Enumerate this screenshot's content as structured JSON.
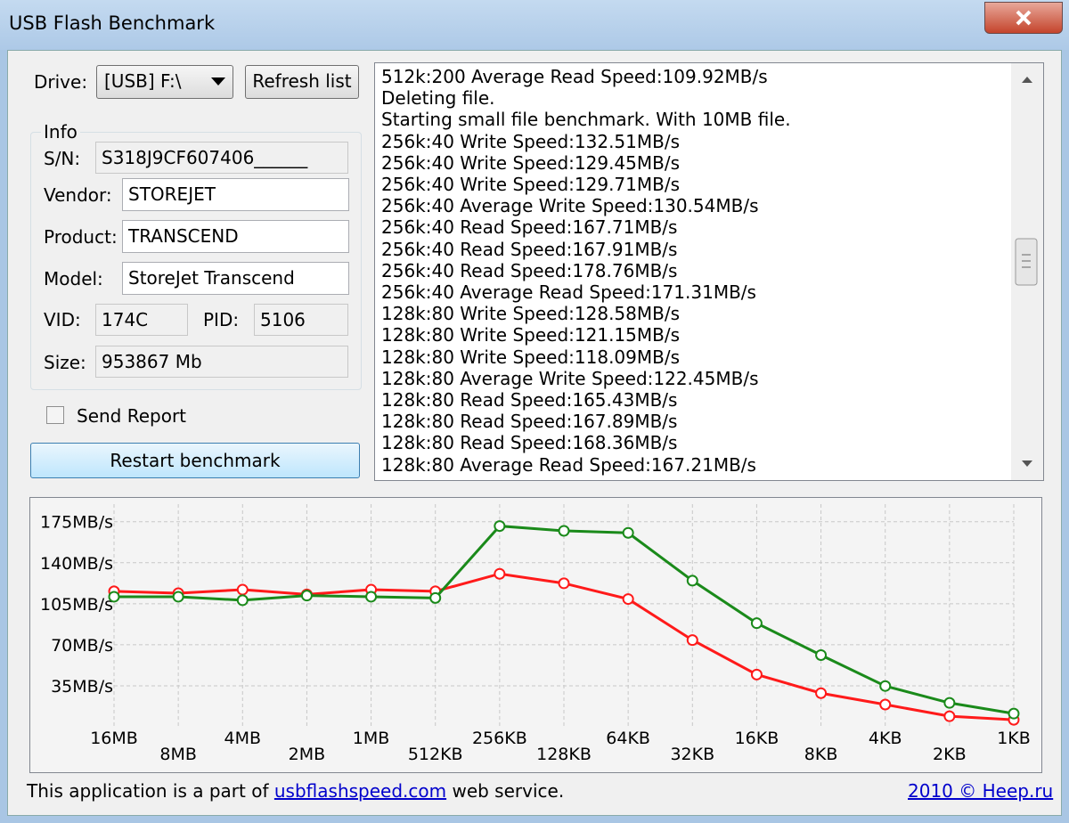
{
  "window": {
    "title": "USB Flash Benchmark"
  },
  "drive": {
    "label": "Drive:",
    "value": "[USB] F:\\",
    "refresh": "Refresh list"
  },
  "info": {
    "title": "Info",
    "sn_label": "S/N:",
    "sn": "S318J9CF607406______",
    "vendor_label": "Vendor:",
    "vendor": "STOREJET",
    "product_label": "Product:",
    "product": "TRANSCEND",
    "model_label": "Model:",
    "model": "StoreJet Transcend",
    "vid_label": "VID:",
    "vid": "174C",
    "pid_label": "PID:",
    "pid": "5106",
    "size_label": "Size:",
    "size": "953867 Mb"
  },
  "send_report": "Send Report",
  "restart": "Restart benchmark",
  "log": [
    "512k:200 Average Read Speed:109.92MB/s",
    "Deleting file.",
    "Starting small file benchmark. With 10MB file.",
    "256k:40 Write Speed:132.51MB/s",
    "256k:40 Write Speed:129.45MB/s",
    "256k:40 Write Speed:129.71MB/s",
    "256k:40 Average Write Speed:130.54MB/s",
    "256k:40 Read Speed:167.71MB/s",
    "256k:40 Read Speed:167.91MB/s",
    "256k:40 Read Speed:178.76MB/s",
    "256k:40 Average Read Speed:171.31MB/s",
    "128k:80 Write Speed:128.58MB/s",
    "128k:80 Write Speed:121.15MB/s",
    "128k:80 Write Speed:118.09MB/s",
    "128k:80 Average Write Speed:122.45MB/s",
    "128k:80 Read Speed:165.43MB/s",
    "128k:80 Read Speed:167.89MB/s",
    "128k:80 Read Speed:168.36MB/s",
    "128k:80 Average Read Speed:167.21MB/s"
  ],
  "chart_data": {
    "type": "line",
    "categories": [
      "16MB",
      "8MB",
      "4MB",
      "2MB",
      "1MB",
      "512KB",
      "256KB",
      "128KB",
      "64KB",
      "32KB",
      "16KB",
      "8KB",
      "4KB",
      "2KB",
      "1KB"
    ],
    "series": [
      {
        "color": "#ff1a1a",
        "values": [
          115.6,
          114,
          117,
          113,
          117,
          115.6,
          130.54,
          122.45,
          109,
          74,
          44.6,
          28.7,
          19,
          9,
          6
        ]
      },
      {
        "color": "#1a8a1a",
        "values": [
          111,
          111,
          108,
          112,
          111,
          109.92,
          171.31,
          167.21,
          165.5,
          124.7,
          88.4,
          61.2,
          34.8,
          20.4,
          11.3
        ]
      }
    ],
    "ylim": [
      0,
      190
    ],
    "yticks": [
      {
        "value": 35,
        "label": "35MB/s"
      },
      {
        "value": 70,
        "label": "70MB/s"
      },
      {
        "value": 105,
        "label": "105MB/s"
      },
      {
        "value": 140,
        "label": "140MB/s"
      },
      {
        "value": 175,
        "label": "175MB/s"
      }
    ],
    "grid": true
  },
  "footer": {
    "text_before": "This application is a part of",
    "link": "usbflashspeed.com",
    "text_after": "web service.",
    "copyright": "2010 © Heep.ru"
  }
}
